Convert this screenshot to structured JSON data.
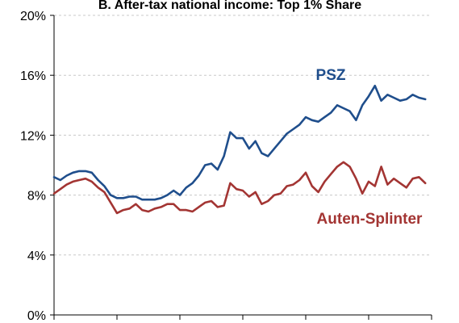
{
  "chart_data": {
    "type": "line",
    "title": "B. After-tax national income: Top 1% Share",
    "xlabel": "",
    "ylabel": "",
    "xlim": [
      1962,
      2022
    ],
    "ylim": [
      0,
      20
    ],
    "y_ticks": [
      0,
      4,
      8,
      12,
      16,
      20
    ],
    "y_tick_labels": [
      "0%",
      "4%",
      "8%",
      "12%",
      "16%",
      "20%"
    ],
    "grid": true,
    "x": [
      1962,
      1963,
      1964,
      1965,
      1966,
      1967,
      1968,
      1969,
      1970,
      1971,
      1972,
      1973,
      1974,
      1975,
      1976,
      1977,
      1978,
      1979,
      1980,
      1981,
      1982,
      1983,
      1984,
      1985,
      1986,
      1987,
      1988,
      1989,
      1990,
      1991,
      1992,
      1993,
      1994,
      1995,
      1996,
      1997,
      1998,
      1999,
      2000,
      2001,
      2002,
      2003,
      2004,
      2005,
      2006,
      2007,
      2008,
      2009,
      2010,
      2011,
      2012,
      2013,
      2014,
      2015,
      2016,
      2017,
      2018,
      2019,
      2020,
      2021
    ],
    "series": [
      {
        "name": "PSZ",
        "color": "#1f4e8c",
        "values": [
          9.2,
          9.0,
          9.3,
          9.5,
          9.6,
          9.6,
          9.5,
          9.0,
          8.6,
          8.0,
          7.8,
          7.8,
          7.9,
          7.9,
          7.7,
          7.7,
          7.7,
          7.8,
          8.0,
          8.3,
          8.0,
          8.5,
          8.8,
          9.3,
          10.0,
          10.1,
          9.7,
          10.6,
          12.2,
          11.8,
          11.8,
          11.1,
          11.6,
          10.8,
          10.6,
          11.1,
          11.6,
          12.1,
          12.4,
          12.7,
          13.2,
          13.0,
          12.9,
          13.2,
          13.5,
          14.0,
          13.8,
          13.6,
          13.0,
          14.0,
          14.6,
          15.3,
          14.3,
          14.7,
          14.5,
          14.3,
          14.4,
          14.7,
          14.5,
          14.4
        ]
      },
      {
        "name": "Auten-Splinter",
        "color": "#a33533",
        "values": [
          8.1,
          8.4,
          8.7,
          8.9,
          9.0,
          9.1,
          8.9,
          8.5,
          8.2,
          7.5,
          6.8,
          7.0,
          7.1,
          7.4,
          7.0,
          6.9,
          7.1,
          7.2,
          7.4,
          7.4,
          7.0,
          7.0,
          6.9,
          7.2,
          7.5,
          7.6,
          7.2,
          7.3,
          8.8,
          8.4,
          8.3,
          7.9,
          8.2,
          7.4,
          7.6,
          8.0,
          8.1,
          8.6,
          8.7,
          9.0,
          9.5,
          8.6,
          8.2,
          8.9,
          9.4,
          9.9,
          10.2,
          9.9,
          9.1,
          8.1,
          8.9,
          8.6,
          9.9,
          8.7,
          9.1,
          8.8,
          8.5,
          9.1,
          9.2,
          8.8
        ]
      }
    ]
  }
}
